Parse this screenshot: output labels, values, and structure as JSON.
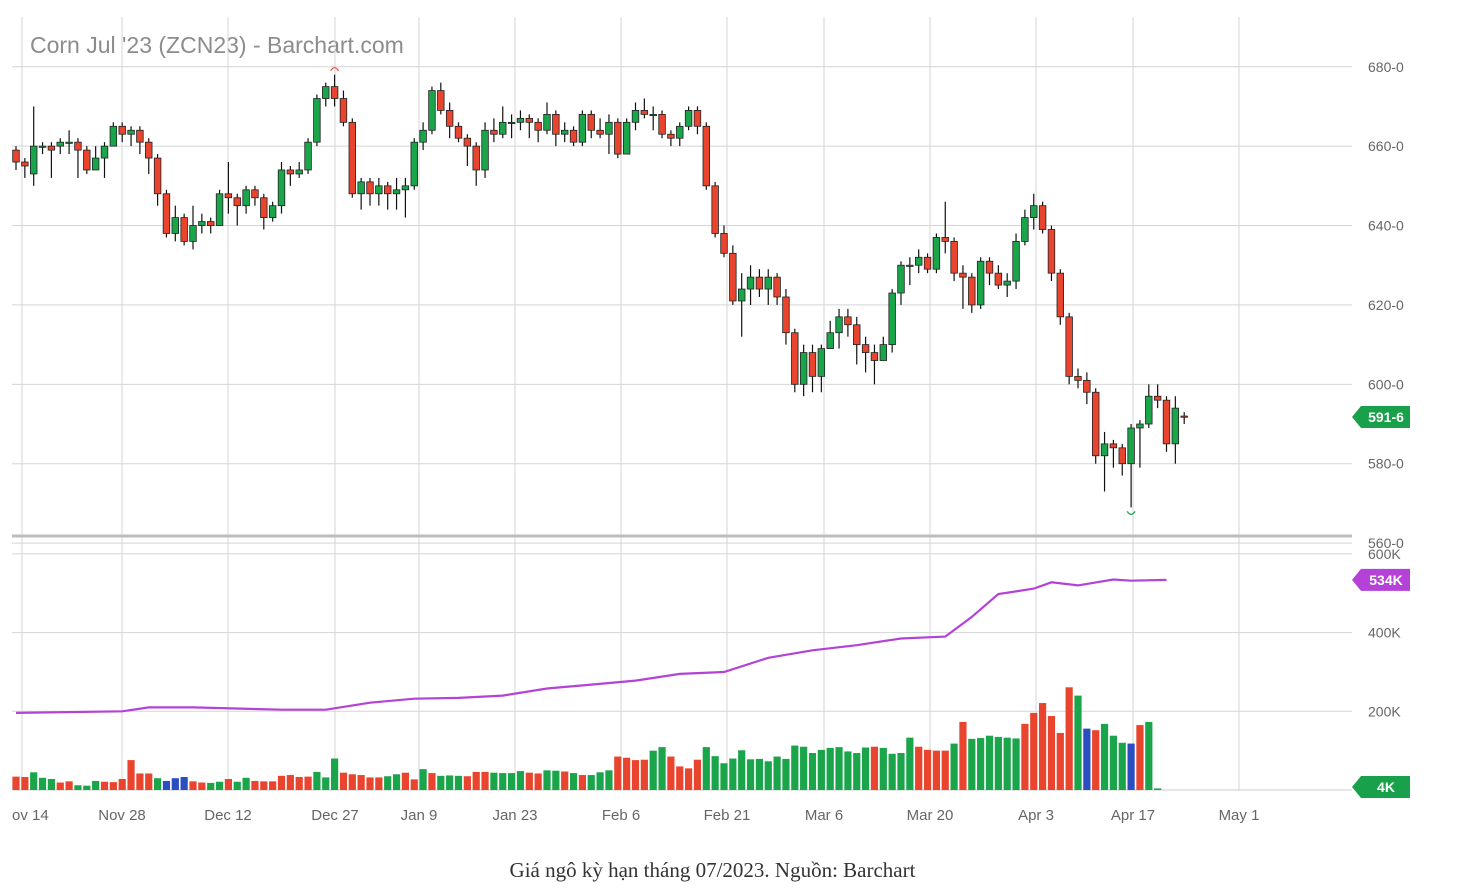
{
  "chart_data": {
    "type": "candlestick",
    "title": "Corn Jul '23 (ZCN23) - Barchart.com",
    "x_tick_labels": [
      "ov 14",
      "Nov 28",
      "Dec 12",
      "Dec 27",
      "Jan 9",
      "Jan 23",
      "Feb 6",
      "Feb 21",
      "Mar 6",
      "Mar 20",
      "Apr 3",
      "Apr 17",
      "May 1"
    ],
    "price_axis": {
      "tick_values": [
        560,
        580,
        600,
        620,
        640,
        660,
        680
      ],
      "tick_labels": [
        "560-0",
        "580-0",
        "600-0",
        "620-0",
        "640-0",
        "660-0",
        "680-0"
      ],
      "range": [
        557,
        688
      ]
    },
    "last_price_label": "591-6",
    "last_price": 591.75,
    "grid": true,
    "candles": [
      [
        659,
        656,
        660,
        654
      ],
      [
        656,
        655,
        657,
        652
      ],
      [
        653,
        660,
        670,
        650
      ],
      [
        660,
        660,
        661,
        658
      ],
      [
        660,
        659,
        661,
        652
      ],
      [
        660,
        661,
        662,
        658
      ],
      [
        661,
        661,
        664,
        658
      ],
      [
        661,
        659,
        662,
        652
      ],
      [
        659,
        654,
        660,
        653
      ],
      [
        654,
        657,
        660,
        654
      ],
      [
        657,
        660,
        661,
        652
      ],
      [
        660,
        665,
        666,
        660
      ],
      [
        665,
        663,
        666,
        661
      ],
      [
        663,
        664,
        665,
        660
      ],
      [
        664,
        661,
        665,
        658
      ],
      [
        661,
        657,
        662,
        653
      ],
      [
        657,
        648,
        658,
        645
      ],
      [
        648,
        638,
        649,
        637
      ],
      [
        638,
        642,
        645,
        636
      ],
      [
        642,
        636,
        643,
        635
      ],
      [
        636,
        640,
        645,
        634
      ],
      [
        640,
        641,
        643,
        638
      ],
      [
        641,
        640,
        642,
        638
      ],
      [
        640,
        648,
        649,
        640
      ],
      [
        648,
        647,
        656,
        643
      ],
      [
        647,
        645,
        648,
        640
      ],
      [
        645,
        649,
        650,
        643
      ],
      [
        649,
        647,
        650,
        645
      ],
      [
        647,
        642,
        648,
        639
      ],
      [
        642,
        645,
        646,
        641
      ],
      [
        645,
        654,
        656,
        643
      ],
      [
        654,
        653,
        655,
        650
      ],
      [
        653,
        654,
        656,
        652
      ],
      [
        654,
        661,
        662,
        653
      ],
      [
        661,
        672,
        673,
        660
      ],
      [
        672,
        675,
        676,
        670
      ],
      [
        675,
        672,
        678,
        670
      ],
      [
        672,
        666,
        674,
        665
      ],
      [
        666,
        648,
        667,
        647
      ],
      [
        648,
        651,
        652,
        644
      ],
      [
        651,
        648,
        652,
        645
      ],
      [
        648,
        650,
        652,
        645
      ],
      [
        650,
        648,
        651,
        644
      ],
      [
        648,
        649,
        652,
        644
      ],
      [
        649,
        650,
        652,
        642
      ],
      [
        650,
        661,
        662,
        649
      ],
      [
        661,
        664,
        666,
        659
      ],
      [
        664,
        674,
        675,
        663
      ],
      [
        674,
        669,
        676,
        668
      ],
      [
        669,
        665,
        671,
        662
      ],
      [
        665,
        662,
        666,
        661
      ],
      [
        662,
        660,
        663,
        655
      ],
      [
        660,
        654,
        661,
        650
      ],
      [
        654,
        664,
        666,
        652
      ],
      [
        664,
        663,
        667,
        661
      ],
      [
        663,
        666,
        670,
        662
      ],
      [
        666,
        666,
        668,
        662
      ],
      [
        666,
        667,
        669,
        664
      ],
      [
        667,
        666,
        668,
        662
      ],
      [
        666,
        664,
        667,
        661
      ],
      [
        664,
        668,
        671,
        663
      ],
      [
        668,
        663,
        669,
        660
      ],
      [
        663,
        664,
        666,
        661
      ],
      [
        664,
        661,
        665,
        660
      ],
      [
        661,
        668,
        669,
        660
      ],
      [
        668,
        664,
        669,
        662
      ],
      [
        664,
        663,
        667,
        662
      ],
      [
        663,
        666,
        668,
        658
      ],
      [
        666,
        658,
        667,
        657
      ],
      [
        658,
        666,
        667,
        658
      ],
      [
        666,
        669,
        671,
        664
      ],
      [
        669,
        668,
        672,
        667
      ],
      [
        668,
        668,
        670,
        664
      ],
      [
        668,
        663,
        669,
        662
      ],
      [
        663,
        662,
        664,
        660
      ],
      [
        662,
        665,
        666,
        660
      ],
      [
        665,
        669,
        670,
        664
      ],
      [
        669,
        665,
        670,
        663
      ],
      [
        665,
        650,
        666,
        649
      ],
      [
        650,
        638,
        651,
        637
      ],
      [
        638,
        633,
        640,
        632
      ],
      [
        633,
        621,
        635,
        620
      ],
      [
        621,
        624,
        628,
        612
      ],
      [
        624,
        627,
        630,
        620
      ],
      [
        627,
        624,
        629,
        622
      ],
      [
        624,
        627,
        629,
        620
      ],
      [
        627,
        622,
        628,
        620
      ],
      [
        622,
        613,
        624,
        610
      ],
      [
        613,
        600,
        614,
        598
      ],
      [
        600,
        608,
        610,
        597
      ],
      [
        608,
        602,
        610,
        598
      ],
      [
        602,
        609,
        610,
        598
      ],
      [
        609,
        613,
        616,
        609
      ],
      [
        613,
        617,
        619,
        609
      ],
      [
        617,
        615,
        619,
        612
      ],
      [
        615,
        610,
        617,
        605
      ],
      [
        610,
        608,
        612,
        603
      ],
      [
        608,
        606,
        610,
        600
      ],
      [
        606,
        610,
        612,
        606
      ],
      [
        610,
        623,
        624,
        608
      ],
      [
        623,
        630,
        631,
        620
      ],
      [
        630,
        630,
        632,
        625
      ],
      [
        630,
        632,
        634,
        628
      ],
      [
        632,
        629,
        633,
        628
      ],
      [
        629,
        637,
        638,
        628
      ],
      [
        637,
        636,
        646,
        633
      ],
      [
        636,
        628,
        637,
        626
      ],
      [
        628,
        627,
        630,
        619
      ],
      [
        627,
        620,
        628,
        618
      ],
      [
        620,
        631,
        632,
        619
      ],
      [
        631,
        628,
        632,
        625
      ],
      [
        628,
        625,
        630,
        624
      ],
      [
        625,
        626,
        628,
        622
      ],
      [
        626,
        636,
        638,
        624
      ],
      [
        636,
        642,
        644,
        635
      ],
      [
        642,
        645,
        648,
        639
      ],
      [
        645,
        639,
        646,
        638
      ],
      [
        639,
        628,
        640,
        626
      ],
      [
        628,
        617,
        629,
        615
      ],
      [
        617,
        602,
        618,
        600
      ],
      [
        602,
        601,
        604,
        599
      ],
      [
        601,
        598,
        603,
        595
      ],
      [
        598,
        582,
        599,
        580
      ],
      [
        582,
        585,
        588,
        573
      ],
      [
        585,
        584,
        586,
        579
      ],
      [
        584,
        580,
        585,
        577
      ],
      [
        580,
        589,
        590,
        569
      ],
      [
        589,
        590,
        591,
        579
      ],
      [
        590,
        597,
        600,
        589
      ],
      [
        597,
        596,
        600,
        594
      ],
      [
        596,
        585,
        597,
        583
      ],
      [
        585,
        594,
        597,
        580
      ],
      [
        592,
        591.75,
        593,
        590
      ]
    ],
    "volume_axis": {
      "tick_values": [
        200000,
        400000,
        600000
      ],
      "tick_labels": [
        "200K",
        "400K",
        "600K"
      ],
      "range": [
        0,
        610000
      ]
    },
    "open_interest_label": "534K",
    "last_volume_label": "4K",
    "volume_colors": {
      "up": "#1ba54b",
      "down": "#e8442e",
      "flat": "#2a4ec2"
    },
    "volumes": [
      [
        34000,
        "down"
      ],
      [
        33000,
        "down"
      ],
      [
        45000,
        "up"
      ],
      [
        31000,
        "up"
      ],
      [
        28000,
        "up"
      ],
      [
        19000,
        "down"
      ],
      [
        22000,
        "down"
      ],
      [
        12000,
        "up"
      ],
      [
        11000,
        "up"
      ],
      [
        23000,
        "up"
      ],
      [
        21000,
        "down"
      ],
      [
        20000,
        "down"
      ],
      [
        28000,
        "down"
      ],
      [
        76000,
        "down"
      ],
      [
        42000,
        "down"
      ],
      [
        42000,
        "down"
      ],
      [
        30000,
        "up"
      ],
      [
        23000,
        "flat"
      ],
      [
        30000,
        "flat"
      ],
      [
        33000,
        "flat"
      ],
      [
        22000,
        "down"
      ],
      [
        19000,
        "down"
      ],
      [
        18000,
        "up"
      ],
      [
        21000,
        "up"
      ],
      [
        28000,
        "down"
      ],
      [
        21000,
        "up"
      ],
      [
        31000,
        "up"
      ],
      [
        23000,
        "down"
      ],
      [
        22000,
        "down"
      ],
      [
        22000,
        "down"
      ],
      [
        36000,
        "down"
      ],
      [
        38000,
        "down"
      ],
      [
        33000,
        "down"
      ],
      [
        34000,
        "down"
      ],
      [
        46000,
        "up"
      ],
      [
        32000,
        "up"
      ],
      [
        80000,
        "up"
      ],
      [
        44000,
        "down"
      ],
      [
        40000,
        "down"
      ],
      [
        38000,
        "down"
      ],
      [
        32000,
        "down"
      ],
      [
        32000,
        "down"
      ],
      [
        35000,
        "up"
      ],
      [
        40000,
        "up"
      ],
      [
        44000,
        "down"
      ],
      [
        27000,
        "down"
      ],
      [
        53000,
        "up"
      ],
      [
        43000,
        "down"
      ],
      [
        36000,
        "up"
      ],
      [
        37000,
        "up"
      ],
      [
        36000,
        "up"
      ],
      [
        35000,
        "down"
      ],
      [
        46000,
        "down"
      ],
      [
        46000,
        "down"
      ],
      [
        44000,
        "up"
      ],
      [
        43000,
        "up"
      ],
      [
        43000,
        "up"
      ],
      [
        48000,
        "up"
      ],
      [
        44000,
        "down"
      ],
      [
        42000,
        "down"
      ],
      [
        50000,
        "up"
      ],
      [
        49000,
        "up"
      ],
      [
        47000,
        "down"
      ],
      [
        43000,
        "up"
      ],
      [
        38000,
        "down"
      ],
      [
        38000,
        "up"
      ],
      [
        45000,
        "up"
      ],
      [
        50000,
        "up"
      ],
      [
        85000,
        "down"
      ],
      [
        82000,
        "down"
      ],
      [
        76000,
        "down"
      ],
      [
        77000,
        "down"
      ],
      [
        100000,
        "up"
      ],
      [
        109000,
        "up"
      ],
      [
        85000,
        "down"
      ],
      [
        60000,
        "down"
      ],
      [
        55000,
        "down"
      ],
      [
        77000,
        "down"
      ],
      [
        109000,
        "up"
      ],
      [
        86000,
        "up"
      ],
      [
        68000,
        "up"
      ],
      [
        80000,
        "up"
      ],
      [
        101000,
        "up"
      ],
      [
        78000,
        "up"
      ],
      [
        79000,
        "up"
      ],
      [
        73000,
        "up"
      ],
      [
        85000,
        "up"
      ],
      [
        79000,
        "up"
      ],
      [
        113000,
        "up"
      ],
      [
        110000,
        "up"
      ],
      [
        94000,
        "up"
      ],
      [
        102000,
        "up"
      ],
      [
        107000,
        "up"
      ],
      [
        109000,
        "up"
      ],
      [
        98000,
        "up"
      ],
      [
        94000,
        "up"
      ],
      [
        108000,
        "up"
      ],
      [
        110000,
        "down"
      ],
      [
        107000,
        "up"
      ],
      [
        92000,
        "up"
      ],
      [
        94000,
        "up"
      ],
      [
        133000,
        "up"
      ],
      [
        110000,
        "down"
      ],
      [
        102000,
        "down"
      ],
      [
        100000,
        "down"
      ],
      [
        100000,
        "down"
      ],
      [
        118000,
        "up"
      ],
      [
        173000,
        "down"
      ],
      [
        130000,
        "up"
      ],
      [
        132000,
        "up"
      ],
      [
        138000,
        "up"
      ],
      [
        135000,
        "up"
      ],
      [
        133000,
        "up"
      ],
      [
        131000,
        "up"
      ],
      [
        168000,
        "down"
      ],
      [
        196000,
        "down"
      ],
      [
        221000,
        "down"
      ],
      [
        188000,
        "down"
      ],
      [
        145000,
        "down"
      ],
      [
        261000,
        "down"
      ],
      [
        240000,
        "up"
      ],
      [
        156000,
        "flat"
      ],
      [
        152000,
        "down"
      ],
      [
        168000,
        "up"
      ],
      [
        138000,
        "up"
      ],
      [
        120000,
        "up"
      ],
      [
        118000,
        "flat"
      ],
      [
        165000,
        "down"
      ],
      [
        173000,
        "up"
      ],
      [
        4000,
        "up"
      ]
    ],
    "open_interest_series": [
      [
        0,
        196000
      ],
      [
        12,
        200000
      ],
      [
        15,
        210000
      ],
      [
        20,
        210000
      ],
      [
        30,
        204000
      ],
      [
        35,
        204000
      ],
      [
        40,
        222000
      ],
      [
        45,
        232000
      ],
      [
        50,
        234000
      ],
      [
        55,
        240000
      ],
      [
        60,
        258000
      ],
      [
        65,
        268000
      ],
      [
        70,
        278000
      ],
      [
        75,
        295000
      ],
      [
        80,
        300000
      ],
      [
        85,
        336000
      ],
      [
        90,
        355000
      ],
      [
        95,
        368000
      ],
      [
        100,
        385000
      ],
      [
        105,
        390000
      ],
      [
        108,
        440000
      ],
      [
        111,
        498000
      ],
      [
        115,
        512000
      ],
      [
        117,
        528000
      ],
      [
        120,
        520000
      ],
      [
        124,
        535000
      ],
      [
        126,
        532000
      ],
      [
        130,
        534000
      ]
    ]
  },
  "caption": "Giá ngô kỳ hạn tháng 07/2023. Nguồn: Barchart",
  "colors": {
    "up": "#1ba54b",
    "down": "#e8442e",
    "wick": "#111111",
    "grid": "#d5d5d5",
    "axis_text": "#666666",
    "title_text": "#8c8c8c",
    "open_interest": "#b442d6",
    "price_badge": "#18a14a",
    "oi_badge": "#b442d6",
    "volume_badge": "#18a14a"
  }
}
